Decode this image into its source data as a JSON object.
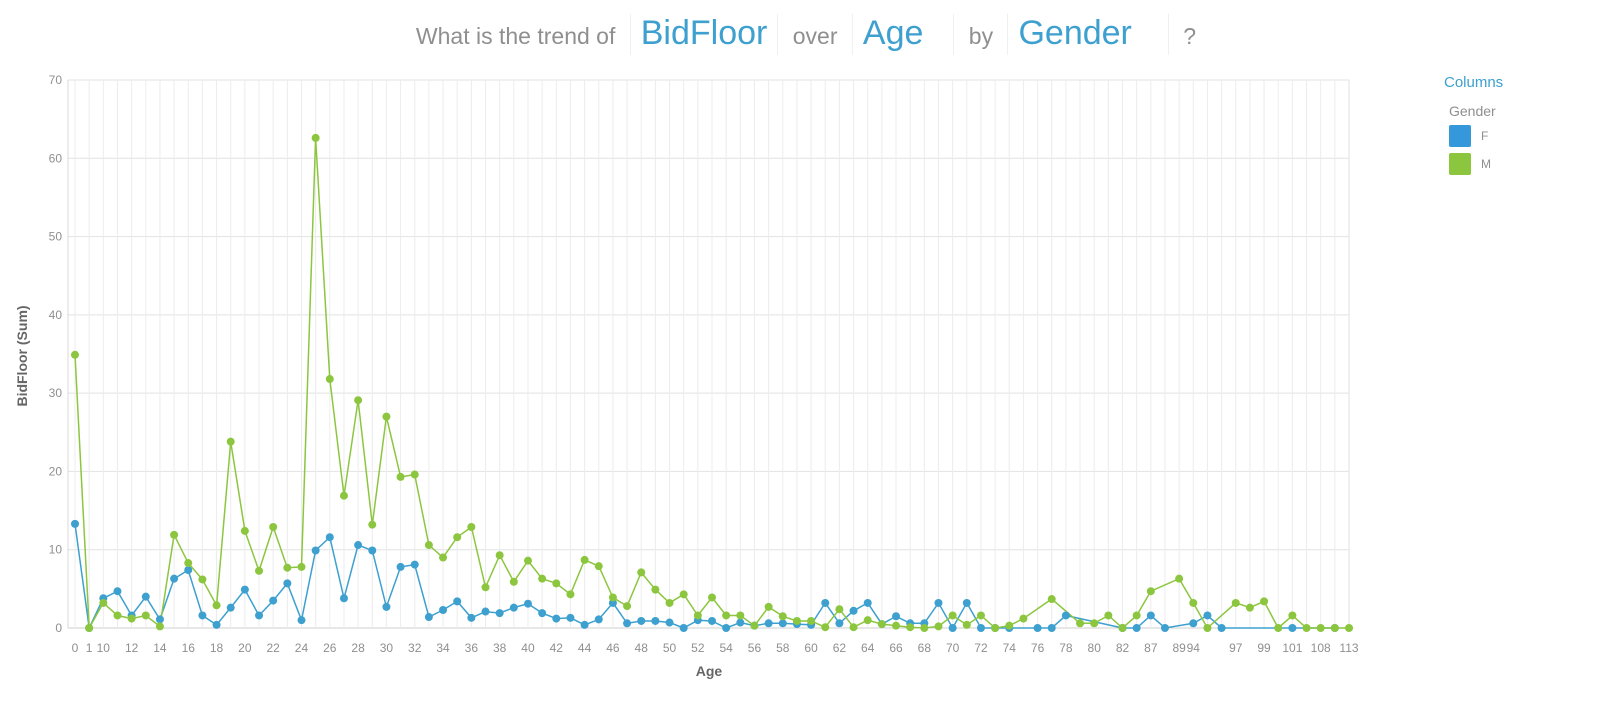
{
  "question": {
    "prefix": "What is the trend of",
    "measure": "BidFloor",
    "over_word": "over",
    "dimension": "Age",
    "by_word": "by",
    "group": "Gender",
    "suffix": "?"
  },
  "legend": {
    "title": "Columns",
    "group_label": "Gender",
    "items": [
      {
        "label": "F",
        "color": "#3498db"
      },
      {
        "label": "M",
        "color": "#8cc63f"
      }
    ]
  },
  "chart_data": {
    "type": "line",
    "xlabel": "Age",
    "ylabel": "BidFloor (Sum)",
    "ylim": [
      0,
      70
    ],
    "yticks": [
      0,
      10,
      20,
      30,
      40,
      50,
      60,
      70
    ],
    "grid": true,
    "legend_position": "right",
    "categories": [
      "0",
      "1",
      "10",
      "11",
      "12",
      "13",
      "14",
      "15",
      "16",
      "17",
      "18",
      "19",
      "20",
      "21",
      "22",
      "23",
      "24",
      "25",
      "26",
      "27",
      "28",
      "29",
      "30",
      "31",
      "32",
      "33",
      "34",
      "35",
      "36",
      "37",
      "38",
      "39",
      "40",
      "41",
      "42",
      "43",
      "44",
      "45",
      "46",
      "47",
      "48",
      "49",
      "50",
      "51",
      "52",
      "53",
      "54",
      "55",
      "56",
      "57",
      "58",
      "59",
      "60",
      "61",
      "62",
      "63",
      "64",
      "65",
      "66",
      "67",
      "68",
      "69",
      "70",
      "71",
      "72",
      "73",
      "74",
      "75",
      "76",
      "77",
      "78",
      "79",
      "80",
      "81",
      "82",
      "86",
      "87",
      "88",
      "89",
      "94",
      "95",
      "96",
      "97",
      "98",
      "99",
      "100",
      "101",
      "102",
      "108",
      "109",
      "113"
    ],
    "shown_tick_labels": [
      "0",
      "1",
      "10",
      "12",
      "14",
      "16",
      "18",
      "20",
      "22",
      "24",
      "26",
      "28",
      "30",
      "32",
      "34",
      "36",
      "38",
      "40",
      "42",
      "44",
      "46",
      "48",
      "50",
      "52",
      "54",
      "56",
      "58",
      "60",
      "62",
      "64",
      "66",
      "68",
      "70",
      "72",
      "74",
      "76",
      "78",
      "80",
      "82",
      "87",
      "89",
      "94",
      "97",
      "99",
      "101",
      "108",
      "113"
    ],
    "series": [
      {
        "name": "F",
        "color": "#3da0cf",
        "values": [
          13.3,
          0,
          3.8,
          4.7,
          1.6,
          4,
          1.1,
          6.3,
          7.4,
          1.6,
          0.4,
          2.6,
          4.9,
          1.6,
          3.5,
          5.7,
          1,
          9.9,
          11.6,
          3.8,
          10.6,
          9.9,
          2.7,
          7.8,
          8.1,
          1.4,
          2.3,
          3.4,
          1.3,
          2.1,
          1.9,
          2.6,
          3.1,
          1.9,
          1.2,
          1.3,
          0.4,
          1.1,
          3.2,
          0.6,
          0.9,
          0.9,
          0.7,
          0,
          1,
          0.9,
          0,
          0.7,
          0.3,
          0.6,
          0.6,
          0.5,
          0.4,
          3.2,
          0.6,
          2.2,
          3.2,
          0.5,
          1.5,
          0.6,
          0.6,
          3.2,
          0,
          3.2,
          0,
          0,
          0,
          null,
          0,
          0,
          1.6,
          null,
          null,
          null,
          0,
          0,
          1.6,
          0,
          null,
          0.6,
          1.6,
          0,
          null,
          null,
          null,
          null,
          0,
          null,
          null,
          0,
          null
        ]
      },
      {
        "name": "M",
        "color": "#8cc63f",
        "values": [
          34.9,
          0,
          3.2,
          1.6,
          1.2,
          1.6,
          0.2,
          11.9,
          8.3,
          6.2,
          2.9,
          23.8,
          12.4,
          7.3,
          12.9,
          7.7,
          7.8,
          62.6,
          31.8,
          16.9,
          29.1,
          13.2,
          27,
          19.3,
          19.6,
          10.6,
          9,
          11.6,
          12.9,
          5.2,
          9.3,
          5.9,
          8.6,
          6.3,
          5.7,
          4.3,
          8.7,
          7.9,
          3.9,
          2.8,
          7.1,
          4.9,
          3.2,
          4.3,
          1.6,
          3.9,
          1.6,
          1.6,
          0.3,
          2.7,
          1.5,
          0.9,
          0.9,
          0.1,
          2.4,
          0.1,
          1,
          0.5,
          0.3,
          0.1,
          0,
          0.2,
          1.6,
          0.4,
          1.6,
          0,
          0.3,
          1.2,
          null,
          3.7,
          null,
          0.6,
          0.6,
          1.6,
          0,
          1.6,
          4.7,
          null,
          6.3,
          3.2,
          0,
          null,
          3.2,
          2.6,
          3.4,
          0,
          1.6,
          0,
          0,
          0,
          0
        ]
      }
    ]
  }
}
